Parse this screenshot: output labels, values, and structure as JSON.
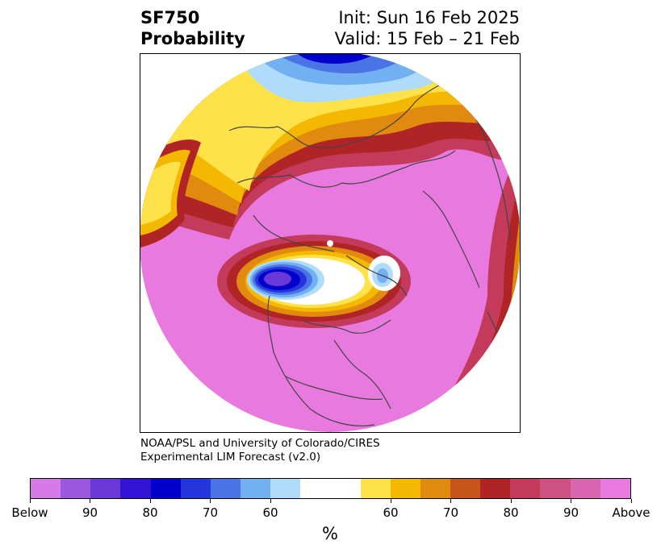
{
  "title": {
    "left_line1": "SF750",
    "left_line2": "Probability",
    "right_line1": "Init: Sun 16 Feb 2025",
    "right_line2": "Valid: 15 Feb – 21 Feb"
  },
  "credit": {
    "line1": "NOAA/PSL and University of Colorado/CIRES",
    "line2": "Experimental LIM Forecast (v2.0)"
  },
  "colorbar": {
    "unit": "%",
    "colors": [
      "#d57ae8",
      "#9c57e0",
      "#6a37d8",
      "#3314d4",
      "#0000cc",
      "#2535dd",
      "#4a73e6",
      "#72b1f1",
      "#b0dcfb",
      "#ffffff",
      "#ffffff",
      "#ffe24a",
      "#f5b800",
      "#e08a0f",
      "#c8551c",
      "#b12426",
      "#c33a5a",
      "#cf5083",
      "#d964b0",
      "#e87adf"
    ],
    "tick_labels": [
      "Below",
      "90",
      "80",
      "70",
      "60",
      "60",
      "70",
      "80",
      "90",
      "Above"
    ]
  },
  "map": {
    "colors": {
      "above_far": "#e87adf",
      "above_90": "#d964b0",
      "above_80": "#c33a5a",
      "above_70": "#b12426",
      "above_60": "#e08a0f",
      "above_50": "#f5b800",
      "above_low": "#ffe24a",
      "below_low": "#b0dcfb",
      "below_60": "#72b1f1",
      "below_70": "#4a73e6",
      "below_80": "#2535dd",
      "below_90": "#0000cc",
      "below_far": "#6a37d8",
      "coast": "#444444"
    }
  }
}
